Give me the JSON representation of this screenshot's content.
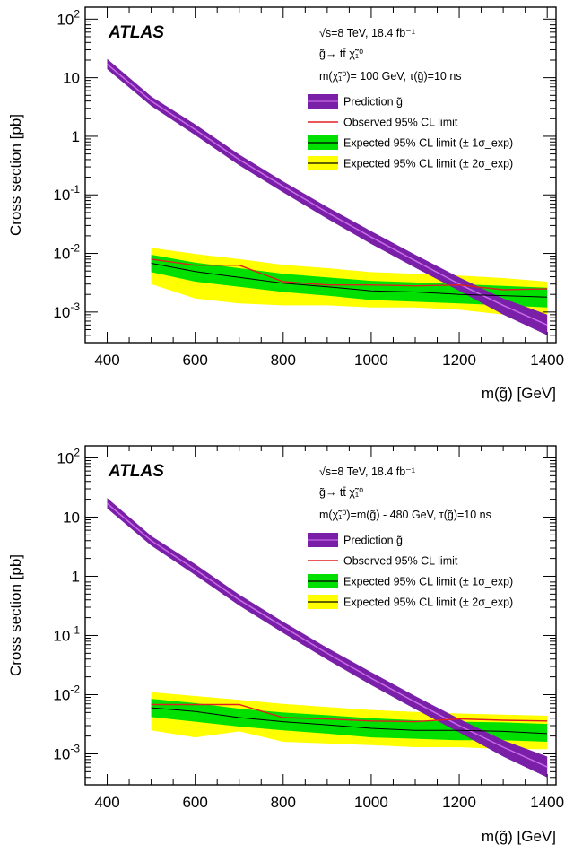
{
  "chart_data": [
    {
      "type": "line",
      "title": "",
      "xlabel": "m(g̃) [GeV]",
      "ylabel": "Cross section [pb]",
      "xlim": [
        350,
        1420
      ],
      "ylim": [
        0.0003,
        160
      ],
      "yscale": "log",
      "x_ticks": [
        "400",
        "600",
        "800",
        "1000",
        "1200",
        "1400"
      ],
      "y_ticks": [
        {
          "base": "10",
          "exp": "-3"
        },
        {
          "base": "10",
          "exp": "-2"
        },
        {
          "base": "10",
          "exp": "-1"
        },
        {
          "base": "1",
          "exp": ""
        },
        {
          "base": "10",
          "exp": ""
        },
        {
          "base": "10",
          "exp": "2"
        }
      ],
      "experiment": "ATLAS",
      "annotations": [
        "√s=8 TeV, 18.4 fb⁻¹",
        "g̃→ tt̄ χ̃₁⁰",
        "m(χ̃₁⁰)= 100 GeV, τ(g̃)=10 ns"
      ],
      "legend_position": "top-right",
      "legend": [
        {
          "label": "Prediction g̃",
          "style": "band",
          "color": "#7a1fa8"
        },
        {
          "label": "Observed 95% CL limit",
          "style": "line",
          "color": "#e02020"
        },
        {
          "label": "Expected 95% CL limit (± 1σ_exp)",
          "style": "band",
          "color": "#00e000"
        },
        {
          "label": "Expected 95% CL limit (± 2σ_exp)",
          "style": "band",
          "color": "#ffff00"
        }
      ],
      "series": [
        {
          "name": "Prediction g̃",
          "x": [
            400,
            500,
            600,
            700,
            800,
            900,
            1000,
            1100,
            1200,
            1300,
            1400
          ],
          "values": [
            17,
            4,
            1.3,
            0.4,
            0.14,
            0.05,
            0.019,
            0.0075,
            0.003,
            0.0013,
            0.0006
          ],
          "low": [
            14,
            3.3,
            1.05,
            0.32,
            0.11,
            0.039,
            0.0145,
            0.0057,
            0.0023,
            0.0009,
            0.0004
          ],
          "high": [
            21,
            4.8,
            1.6,
            0.49,
            0.17,
            0.062,
            0.024,
            0.0095,
            0.0039,
            0.0017,
            0.0009
          ]
        },
        {
          "name": "Observed 95% CL limit",
          "x": [
            500,
            600,
            700,
            800,
            900,
            1000,
            1100,
            1200,
            1300,
            1400
          ],
          "values": [
            0.008,
            0.0063,
            0.0063,
            0.0033,
            0.0029,
            0.0029,
            0.0028,
            0.0029,
            0.0024,
            0.0025
          ]
        },
        {
          "name": "Expected 95% CL limit",
          "x": [
            500,
            600,
            700,
            800,
            900,
            1000,
            1100,
            1200,
            1300,
            1400
          ],
          "values": [
            0.0068,
            0.0049,
            0.0039,
            0.0031,
            0.0027,
            0.0023,
            0.0022,
            0.002,
            0.0019,
            0.0018
          ],
          "sigma1_low": [
            0.0048,
            0.0033,
            0.0027,
            0.0022,
            0.0019,
            0.0016,
            0.0015,
            0.0014,
            0.0013,
            0.0012
          ],
          "sigma1_high": [
            0.0095,
            0.007,
            0.0056,
            0.0045,
            0.0039,
            0.0034,
            0.0032,
            0.003,
            0.0028,
            0.0026
          ],
          "sigma2_low": [
            0.003,
            0.0017,
            0.0014,
            0.0013,
            0.0013,
            0.0012,
            0.0012,
            0.0011,
            0.0009,
            0.0009
          ],
          "sigma2_high": [
            0.0125,
            0.0098,
            0.008,
            0.0064,
            0.0056,
            0.0048,
            0.0045,
            0.0042,
            0.0038,
            0.0033
          ]
        }
      ]
    },
    {
      "type": "line",
      "title": "",
      "xlabel": "m(g̃) [GeV]",
      "ylabel": "Cross section [pb]",
      "xlim": [
        350,
        1420
      ],
      "ylim": [
        0.0003,
        160
      ],
      "yscale": "log",
      "x_ticks": [
        "400",
        "600",
        "800",
        "1000",
        "1200",
        "1400"
      ],
      "y_ticks": [
        {
          "base": "10",
          "exp": "-3"
        },
        {
          "base": "10",
          "exp": "-2"
        },
        {
          "base": "10",
          "exp": "-1"
        },
        {
          "base": "1",
          "exp": ""
        },
        {
          "base": "10",
          "exp": ""
        },
        {
          "base": "10",
          "exp": "2"
        }
      ],
      "experiment": "ATLAS",
      "annotations": [
        "√s=8 TeV, 18.4 fb⁻¹",
        "g̃→ tt̄ χ̃₁⁰",
        "m(χ̃₁⁰)=m(g̃) - 480 GeV, τ(g̃)=10 ns"
      ],
      "legend_position": "top-right",
      "legend": [
        {
          "label": "Prediction g̃",
          "style": "band",
          "color": "#7a1fa8"
        },
        {
          "label": "Observed 95% CL limit",
          "style": "line",
          "color": "#e02020"
        },
        {
          "label": "Expected 95% CL limit (± 1σ_exp)",
          "style": "band",
          "color": "#00e000"
        },
        {
          "label": "Expected 95% CL limit (± 2σ_exp)",
          "style": "band",
          "color": "#ffff00"
        }
      ],
      "series": [
        {
          "name": "Prediction g̃",
          "x": [
            400,
            500,
            600,
            700,
            800,
            900,
            1000,
            1100,
            1200,
            1300,
            1400
          ],
          "values": [
            17,
            4,
            1.3,
            0.4,
            0.14,
            0.05,
            0.019,
            0.0075,
            0.003,
            0.0013,
            0.0006
          ],
          "low": [
            14,
            3.3,
            1.05,
            0.32,
            0.11,
            0.039,
            0.0145,
            0.0057,
            0.0023,
            0.0009,
            0.0004
          ],
          "high": [
            21,
            4.8,
            1.6,
            0.49,
            0.17,
            0.062,
            0.024,
            0.0095,
            0.0039,
            0.0017,
            0.0009
          ]
        },
        {
          "name": "Observed 95% CL limit",
          "x": [
            500,
            600,
            700,
            800,
            900,
            1000,
            1100,
            1200,
            1300,
            1400
          ],
          "values": [
            0.0068,
            0.0068,
            0.0068,
            0.0041,
            0.0039,
            0.0036,
            0.0035,
            0.0039,
            0.0037,
            0.0036
          ]
        },
        {
          "name": "Expected 95% CL limit",
          "x": [
            500,
            600,
            700,
            800,
            900,
            1000,
            1100,
            1200,
            1300,
            1400
          ],
          "values": [
            0.006,
            0.0052,
            0.0041,
            0.0035,
            0.0031,
            0.0027,
            0.0025,
            0.0025,
            0.0024,
            0.0022
          ],
          "sigma1_low": [
            0.0042,
            0.0035,
            0.0029,
            0.0025,
            0.0022,
            0.0019,
            0.0018,
            0.0017,
            0.0017,
            0.0016
          ],
          "sigma1_high": [
            0.0085,
            0.0072,
            0.0058,
            0.005,
            0.0045,
            0.004,
            0.0037,
            0.0035,
            0.0034,
            0.0032
          ],
          "sigma2_low": [
            0.0025,
            0.0019,
            0.0024,
            0.0016,
            0.0015,
            0.0014,
            0.0013,
            0.0013,
            0.0012,
            0.0012
          ],
          "sigma2_high": [
            0.011,
            0.0095,
            0.0082,
            0.007,
            0.0062,
            0.0055,
            0.0051,
            0.0048,
            0.0046,
            0.0044
          ]
        }
      ]
    }
  ]
}
